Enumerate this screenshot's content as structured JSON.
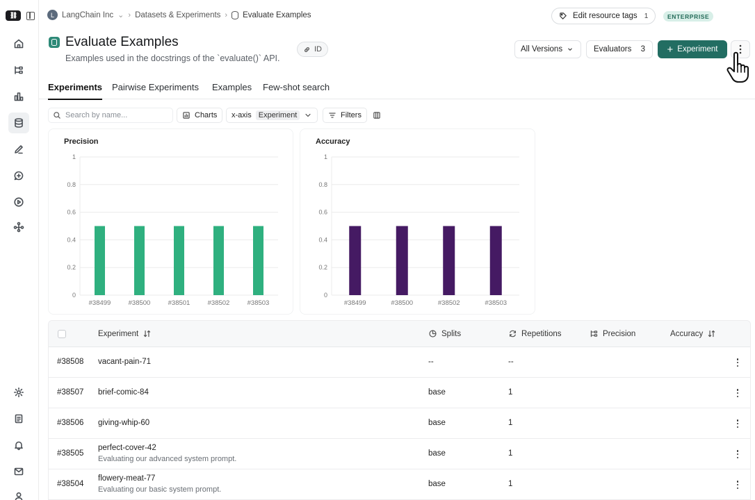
{
  "breadcrumb": {
    "org_initial": "L",
    "org": "LangChain Inc",
    "section": "Datasets & Experiments",
    "current": "Evaluate Examples"
  },
  "top_actions": {
    "tags_label": "Edit resource tags",
    "tags_count": "1",
    "plan_badge": "ENTERPRISE"
  },
  "header": {
    "title": "Evaluate Examples",
    "subtitle": "Examples used in the docstrings of the `evaluate()` API.",
    "id_chip": "ID",
    "versions_label": "All Versions",
    "evaluators_label": "Evaluators",
    "evaluators_count": "3",
    "new_experiment_label": "Experiment"
  },
  "tabs": [
    "Experiments",
    "Pairwise Experiments",
    "Examples",
    "Few-shot search"
  ],
  "toolbar": {
    "search_placeholder": "Search by name...",
    "charts_label": "Charts",
    "xaxis_label": "x-axis",
    "xaxis_value": "Experiment",
    "filters_label": "Filters"
  },
  "chart_data": [
    {
      "type": "bar",
      "title": "Precision",
      "categories": [
        "#38499",
        "#38500",
        "#38501",
        "#38502",
        "#38503"
      ],
      "values": [
        0.5,
        0.5,
        0.5,
        0.5,
        0.5
      ],
      "ylim": [
        0,
        1
      ],
      "yticks": [
        "0",
        "0.2",
        "0.4",
        "0.6",
        "0.8",
        "1"
      ],
      "color": "#2fb07f",
      "grid": true
    },
    {
      "type": "bar",
      "title": "Accuracy",
      "categories": [
        "#38499",
        "#38500",
        "#38502",
        "#38503"
      ],
      "values": [
        0.5,
        0.5,
        0.5,
        0.5
      ],
      "ylim": [
        0,
        1
      ],
      "yticks": [
        "0",
        "0.2",
        "0.4",
        "0.6",
        "0.8",
        "1"
      ],
      "color": "#451a63",
      "grid": true
    }
  ],
  "table": {
    "columns": {
      "experiment": "Experiment",
      "splits": "Splits",
      "repetitions": "Repetitions",
      "precision": "Precision",
      "accuracy": "Accuracy"
    },
    "rows": [
      {
        "id": "#38508",
        "name": "vacant-pain-71",
        "description": "",
        "splits": "--",
        "repetitions": "--"
      },
      {
        "id": "#38507",
        "name": "brief-comic-84",
        "description": "",
        "splits": "base",
        "repetitions": "1"
      },
      {
        "id": "#38506",
        "name": "giving-whip-60",
        "description": "",
        "splits": "base",
        "repetitions": "1"
      },
      {
        "id": "#38505",
        "name": "perfect-cover-42",
        "description": "Evaluating our advanced system prompt.",
        "splits": "base",
        "repetitions": "1"
      },
      {
        "id": "#38504",
        "name": "flowery-meat-77",
        "description": "Evaluating our basic system prompt.",
        "splits": "base",
        "repetitions": "1"
      }
    ]
  }
}
